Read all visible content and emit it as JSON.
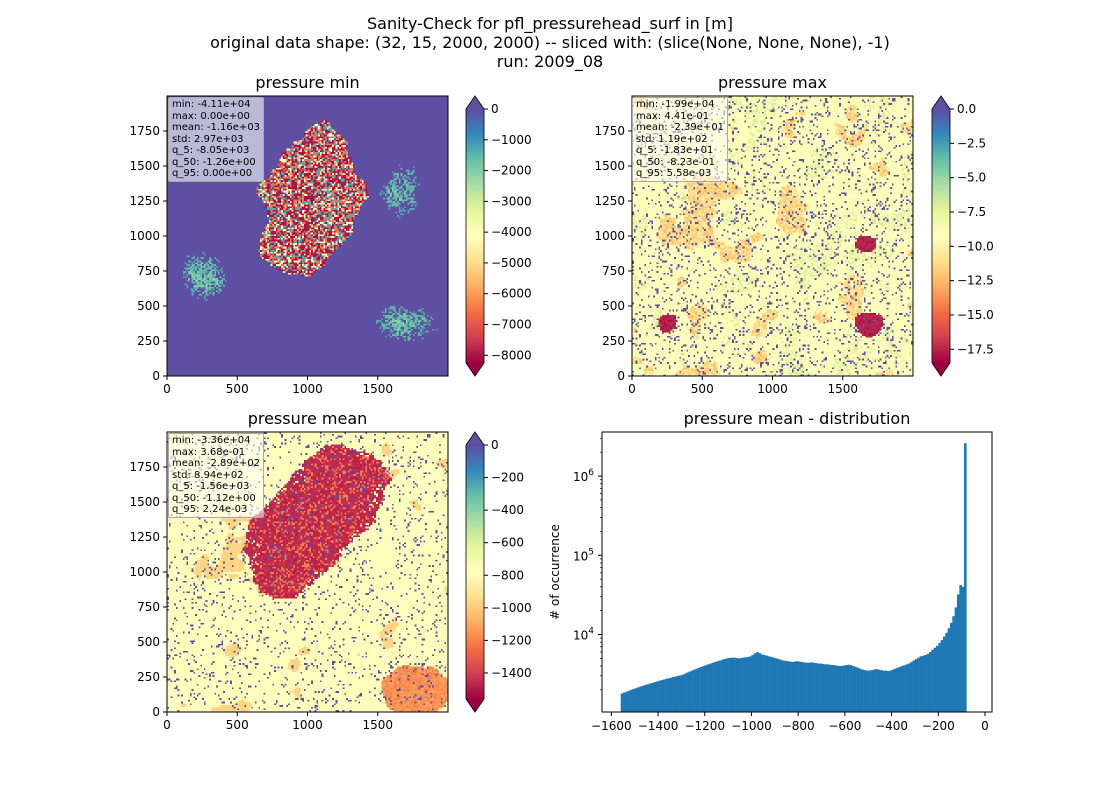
{
  "figure": {
    "title_lines": [
      "Sanity-Check for pfl_pressurehead_surf in [m]",
      "original data shape: (32, 15, 2000, 2000) -- sliced with: (slice(None, None, None), -1)",
      "run: 2009_08"
    ]
  },
  "chart_data": [
    {
      "type": "heatmap",
      "title": "pressure min",
      "xlim": [
        0,
        2000
      ],
      "ylim": [
        0,
        2000
      ],
      "xticks": [
        0,
        500,
        1000,
        1500
      ],
      "yticks": [
        0,
        250,
        500,
        750,
        1000,
        1250,
        1500,
        1750
      ],
      "colormap": "Spectral",
      "colorbar": {
        "range": [
          -8250,
          0
        ],
        "ticks": [
          "0",
          "−1000",
          "−2000",
          "−3000",
          "−4000",
          "−5000",
          "−6000",
          "−7000",
          "−8000"
        ],
        "extend": "both"
      },
      "stats": [
        "min: -4.11e+04",
        "max: 0.00e+00",
        "mean: -1.16e+03",
        "std: 2.97e+03",
        "q_5: -8.05e+03",
        "q_50: -1.26e+00",
        "q_95: 0.00e+00"
      ]
    },
    {
      "type": "heatmap",
      "title": "pressure max",
      "xlim": [
        0,
        2000
      ],
      "ylim": [
        0,
        2000
      ],
      "xticks": [
        0,
        500,
        1000,
        1500
      ],
      "yticks": [
        0,
        250,
        500,
        750,
        1000,
        1250,
        1500,
        1750
      ],
      "colormap": "Spectral",
      "colorbar": {
        "range": [
          -18.5,
          0
        ],
        "ticks": [
          "0.0",
          "−2.5",
          "−5.0",
          "−7.5",
          "−10.0",
          "−12.5",
          "−15.0",
          "−17.5"
        ],
        "extend": "both"
      },
      "stats": [
        "min: -1.99e+04",
        "max: 4.41e-01",
        "mean: -2.39e+01",
        "std: 1.19e+02",
        "q_5: -1.83e+01",
        "q_50: -8.23e-01",
        "q_95: 5.58e-03"
      ]
    },
    {
      "type": "heatmap",
      "title": "pressure mean",
      "xlim": [
        0,
        2000
      ],
      "ylim": [
        0,
        2000
      ],
      "xticks": [
        0,
        500,
        1000,
        1500
      ],
      "yticks": [
        0,
        250,
        500,
        750,
        1000,
        1250,
        1500,
        1750
      ],
      "colormap": "Spectral",
      "colorbar": {
        "range": [
          -1560,
          0
        ],
        "ticks": [
          "0",
          "−200",
          "−400",
          "−600",
          "−800",
          "−1000",
          "−1200",
          "−1400"
        ],
        "extend": "both"
      },
      "stats": [
        "min: -3.36e+04",
        "max: 3.68e-01",
        "mean: -2.89e+02",
        "std: 8.94e+02",
        "q_5: -1.56e+03",
        "q_50: -1.12e+00",
        "q_95: 2.24e-03"
      ]
    },
    {
      "type": "bar",
      "title": "pressure mean - distribution",
      "ylabel": "# of occurrence",
      "yscale": "log",
      "xlim": [
        -1640,
        30
      ],
      "ylim": [
        1050,
        3600000
      ],
      "xticks": [
        "−1600",
        "−1400",
        "−1200",
        "−1000",
        "−800",
        "−600",
        "−400",
        "−200",
        "0"
      ],
      "yticks": [
        "10⁴",
        "10⁵",
        "10⁶"
      ],
      "bar_color": "#1f77b4",
      "bins": {
        "start": -1560,
        "width": 10
      },
      "values": [
        1800,
        1850,
        1900,
        1950,
        2000,
        2050,
        2100,
        2150,
        2200,
        2250,
        2300,
        2350,
        2400,
        2450,
        2500,
        2550,
        2600,
        2650,
        2700,
        2750,
        2800,
        2850,
        2900,
        2950,
        3000,
        3050,
        3100,
        3200,
        3300,
        3400,
        3500,
        3600,
        3700,
        3800,
        3900,
        4000,
        4100,
        4200,
        4300,
        4400,
        4500,
        4600,
        4700,
        4800,
        4900,
        5000,
        5050,
        5100,
        5100,
        5050,
        5000,
        5050,
        5100,
        5150,
        5200,
        5300,
        5500,
        5800,
        6000,
        5800,
        5600,
        5500,
        5400,
        5300,
        5200,
        5100,
        5000,
        4900,
        4800,
        4700,
        4650,
        4600,
        4550,
        4500,
        4550,
        4600,
        4550,
        4500,
        4450,
        4400,
        4400,
        4450,
        4400,
        4350,
        4300,
        4300,
        4250,
        4200,
        4200,
        4150,
        4100,
        4100,
        4050,
        4000,
        4000,
        4050,
        4100,
        4150,
        4100,
        4000,
        3900,
        3800,
        3700,
        3600,
        3550,
        3500,
        3500,
        3550,
        3600,
        3650,
        3600,
        3550,
        3500,
        3500,
        3450,
        3500,
        3600,
        3700,
        3800,
        3900,
        4000,
        4100,
        4200,
        4300,
        4500,
        4700,
        4900,
        5100,
        5300,
        5400,
        5500,
        5700,
        6000,
        6400,
        6800,
        7200,
        7800,
        8500,
        9400,
        10500,
        12000,
        14000,
        17000,
        22000,
        32000,
        42000,
        40000,
        2600000
      ]
    }
  ]
}
